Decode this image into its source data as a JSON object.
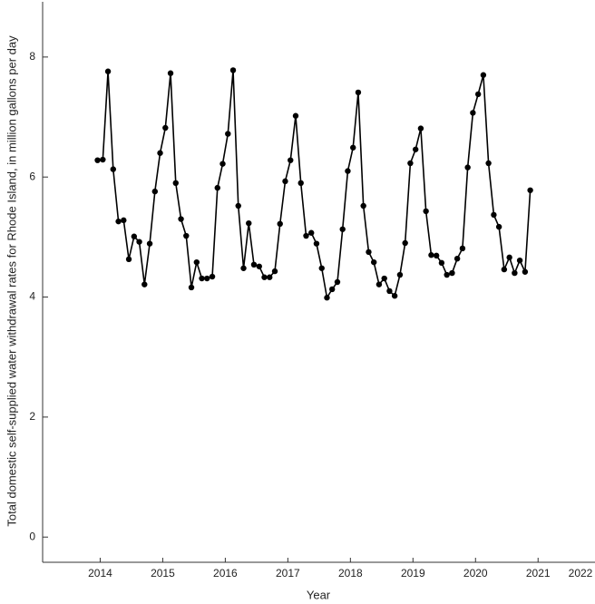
{
  "chart_data": {
    "type": "line",
    "x_label": "Year",
    "y_label": "Total domestic self-supplied water withdrawal rates for Rhode Island, in million gallons per day",
    "x": [
      2014.458,
      2014.542,
      2014.625,
      2014.708,
      2014.792,
      2014.875,
      2014.958,
      2015.042,
      2015.125,
      2015.208,
      2015.292,
      2015.375,
      2015.458,
      2015.542,
      2015.625,
      2015.708,
      2015.792,
      2015.875,
      2015.958,
      2016.042,
      2016.125,
      2016.208,
      2016.292,
      2016.375,
      2016.458,
      2016.542,
      2016.625,
      2016.708,
      2016.792,
      2016.875,
      2016.958,
      2017.042,
      2017.125,
      2017.208,
      2017.292,
      2017.375,
      2017.458,
      2017.542,
      2017.625,
      2017.708,
      2017.792,
      2017.875,
      2017.958,
      2018.042,
      2018.125,
      2018.208,
      2018.292,
      2018.375,
      2018.458,
      2018.542,
      2018.625,
      2018.708,
      2018.792,
      2018.875,
      2018.958,
      2019.042,
      2019.125,
      2019.208,
      2019.292,
      2019.375,
      2019.458,
      2019.542,
      2019.625,
      2019.708,
      2019.792,
      2019.875,
      2019.958,
      2020.042,
      2020.125,
      2020.208,
      2020.292,
      2020.375,
      2020.458,
      2020.542,
      2020.625,
      2020.708,
      2020.792,
      2020.875,
      2020.958,
      2021.042,
      2021.125,
      2021.208,
      2021.292,
      2021.375
    ],
    "series": [
      {
        "color": "#000000",
        "values": [
          6.28,
          6.29,
          7.76,
          6.13,
          5.26,
          5.28,
          4.63,
          5.01,
          4.92,
          4.21,
          4.89,
          5.76,
          6.4,
          6.82,
          7.73,
          5.9,
          5.3,
          5.02,
          4.16,
          4.58,
          4.31,
          4.31,
          4.34,
          5.82,
          6.22,
          6.72,
          7.78,
          5.52,
          4.48,
          5.23,
          4.54,
          4.51,
          4.33,
          4.33,
          4.43,
          5.22,
          5.93,
          6.28,
          7.02,
          5.9,
          5.02,
          5.07,
          4.89,
          4.48,
          3.99,
          4.13,
          4.25,
          5.13,
          6.1,
          6.49,
          7.41,
          5.52,
          4.75,
          4.58,
          4.21,
          4.31,
          4.1,
          4.02,
          4.37,
          4.9,
          6.23,
          6.46,
          6.81,
          5.43,
          4.7,
          4.69,
          4.57,
          4.37,
          4.4,
          4.64,
          4.81,
          6.16,
          7.07,
          7.38,
          7.7,
          6.23,
          5.37,
          5.17,
          4.46,
          4.66,
          4.4,
          4.61,
          4.42,
          5.78
        ]
      }
    ],
    "xlim": [
      2013.58,
      2022.41
    ],
    "ylim": [
      -0.42,
      8.92
    ],
    "yticks": [
      0,
      2,
      4,
      6,
      8
    ],
    "xticks": [
      {
        "value": 2014.5,
        "label": "2014"
      },
      {
        "value": 2015.5,
        "label": "2015"
      },
      {
        "value": 2016.5,
        "label": "2016"
      },
      {
        "value": 2017.5,
        "label": "2017"
      },
      {
        "value": 2018.5,
        "label": "2018"
      },
      {
        "value": 2019.5,
        "label": "2019"
      },
      {
        "value": 2020.5,
        "label": "2020"
      },
      {
        "value": 2021.5,
        "label": "2021"
      },
      {
        "value": 2022.5,
        "label": "2022"
      }
    ]
  }
}
